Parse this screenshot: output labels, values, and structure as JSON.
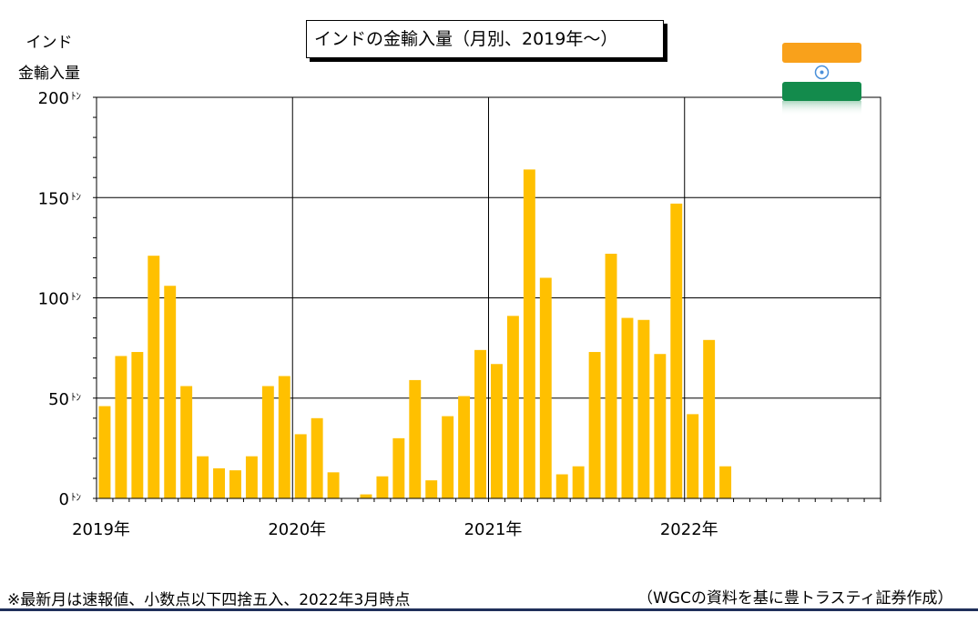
{
  "title": "インドの金輸入量（月別、2019年～）",
  "ylabel_line1": "インド",
  "ylabel_line2": "金輸入量",
  "note": "※最新月は速報値、小数点以下四捨五入、2022年3月時点",
  "source": "（WGCの資料を基に豊トラスティ証券作成）",
  "flag": {
    "name": "india-flag-icon",
    "colors": {
      "saffron": "#F9A11B",
      "white": "#FFFFFF",
      "green": "#138B4C",
      "chakra": "#4A90D9"
    }
  },
  "colors": {
    "bar": "#FFC000",
    "grid": "#000000",
    "accent_line": "#1f2f5a"
  },
  "chart_data": {
    "type": "bar",
    "title": "インドの金輸入量（月別、2019年～）",
    "ylabel": "インド 金輸入量",
    "ylim": [
      0,
      200
    ],
    "yticks": [
      {
        "value": 0,
        "label": "0ﾄﾝ"
      },
      {
        "value": 50,
        "label": "50ﾄﾝ"
      },
      {
        "value": 100,
        "label": "100ﾄﾝ"
      },
      {
        "value": 150,
        "label": "150ﾄﾝ"
      },
      {
        "value": 200,
        "label": "200ﾄﾝ"
      }
    ],
    "year_labels": [
      "2019年",
      "2020年",
      "2021年",
      "2022年"
    ],
    "months_total": 48,
    "grid": true,
    "values": [
      46,
      71,
      73,
      121,
      106,
      56,
      21,
      15,
      14,
      21,
      56,
      61,
      32,
      40,
      13,
      0,
      2,
      11,
      30,
      59,
      9,
      41,
      51,
      74,
      67,
      91,
      164,
      110,
      12,
      16,
      73,
      122,
      90,
      89,
      72,
      147,
      42,
      79,
      16
    ]
  }
}
